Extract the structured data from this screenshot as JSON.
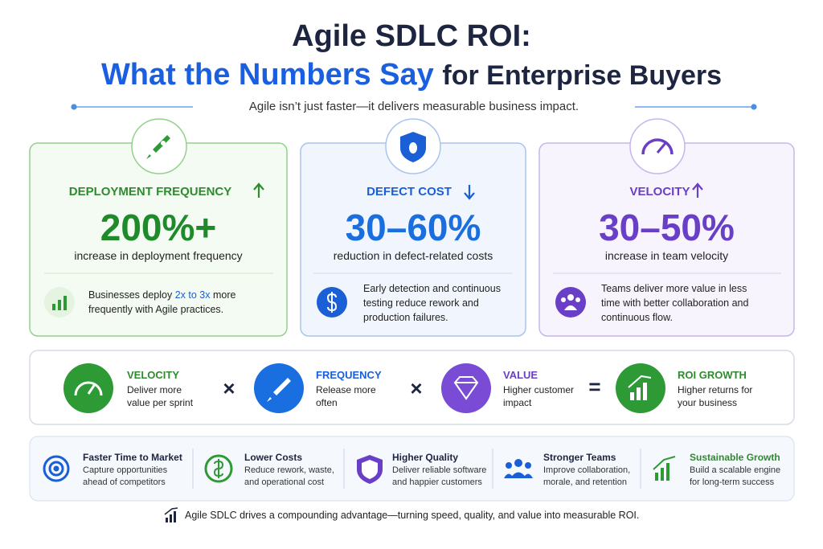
{
  "header": {
    "title_line1": "Agile SDLC ROI:",
    "title_highlight": "What the Numbers Say",
    "title_rest": "for Enterprise Buyers",
    "subtitle": "Agile isn’t just faster—it delivers measurable business impact."
  },
  "cards": [
    {
      "label": "DEPLOYMENT FREQUENCY",
      "stat": "200%+",
      "caption": "increase in deployment frequency",
      "note_before": "Businesses deploy ",
      "note_highlight": "2x to 3x",
      "note_after": " more frequently with Agile practices."
    },
    {
      "label": "DEFECT COST",
      "stat": "30–60%",
      "caption": "reduction in defect-related costs",
      "note": "Early detection and continuous testing reduce rework and production failures."
    },
    {
      "label": "VELOCITY",
      "stat": "30–50%",
      "caption": "increase in team velocity",
      "note": "Teams deliver more value in less time with better collaboration and continuous flow."
    }
  ],
  "formula": {
    "items": [
      {
        "title": "VELOCITY",
        "text": "Deliver more value per sprint"
      },
      {
        "title": "FREQUENCY",
        "text": "Release more often"
      },
      {
        "title": "VALUE",
        "text": "Higher customer impact"
      },
      {
        "title": "ROI GROWTH",
        "text": "Higher returns for your business"
      }
    ],
    "operators": [
      "×",
      "×",
      "="
    ]
  },
  "benefits": [
    {
      "title": "Faster Time to Market",
      "text": "Capture opportunities ahead of competitors"
    },
    {
      "title": "Lower Costs",
      "text": "Reduce rework, waste, and operational cost"
    },
    {
      "title": "Higher Quality",
      "text": "Deliver reliable software and happier customers"
    },
    {
      "title": "Stronger Teams",
      "text": "Improve collaboration, morale, and retention"
    },
    {
      "title": "Sustainable Growth",
      "text": "Build a scalable engine for long-term success"
    }
  ],
  "footer": "Agile SDLC drives a compounding advantage—turning speed, quality, and value into measurable ROI."
}
